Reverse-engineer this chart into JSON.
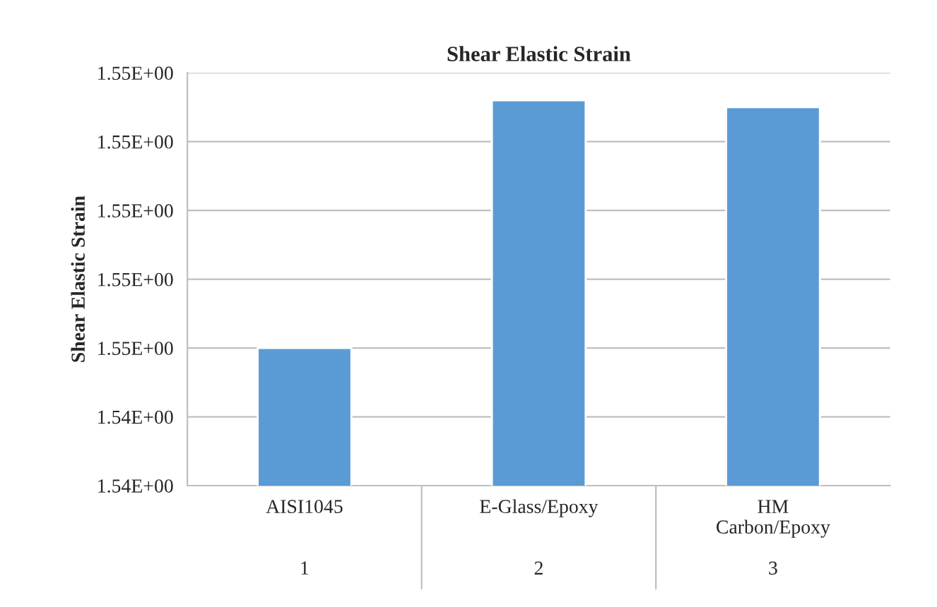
{
  "chart_data": {
    "type": "bar",
    "title": "Shear Elastic Strain",
    "ylabel": "Shear Elastic Strain",
    "categories": [
      "AISI1045\n\n\n1",
      "E-Glass/Epoxy\n\n\n2",
      "HM\nCarbon/Epoxy\n\n3"
    ],
    "values": [
      1.545,
      1.5486,
      1.5485
    ],
    "color": "#5b9bd5",
    "ylim": [
      1.543,
      1.549
    ],
    "yticks": [
      {
        "value": 1.543,
        "label": "1.54E+00"
      },
      {
        "value": 1.544,
        "label": "1.54E+00"
      },
      {
        "value": 1.545,
        "label": "1.55E+00"
      },
      {
        "value": 1.546,
        "label": "1.55E+00"
      },
      {
        "value": 1.547,
        "label": "1.55E+00"
      },
      {
        "value": 1.548,
        "label": "1.55E+00"
      },
      {
        "value": 1.549,
        "label": "1.55E+00"
      }
    ],
    "grid": "y"
  }
}
